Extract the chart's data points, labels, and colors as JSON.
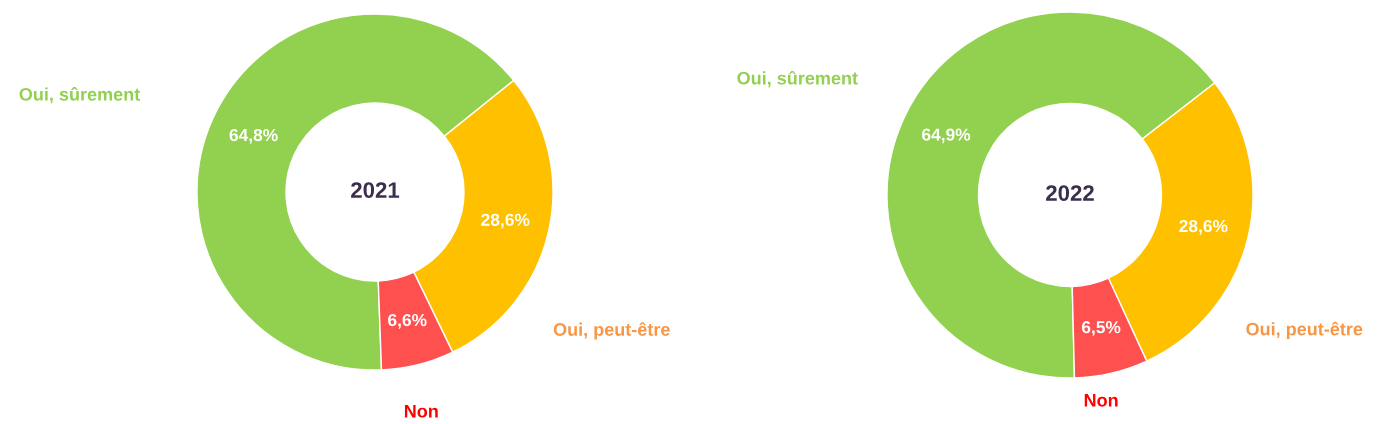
{
  "chart_data": [
    {
      "type": "donut",
      "title": "2021",
      "categories": [
        "Oui, sûrement",
        "Oui, peut-être",
        "Non"
      ],
      "values": [
        64.8,
        28.6,
        6.6
      ],
      "colors": [
        "#92d050",
        "#ffc000",
        "#ff5050"
      ],
      "value_labels": [
        "64,8%",
        "28,6%",
        "6,6%"
      ],
      "legend": false
    },
    {
      "type": "donut",
      "title": "2022",
      "categories": [
        "Oui, sûrement",
        "Oui, peut-être",
        "Non"
      ],
      "values": [
        64.9,
        28.6,
        6.5
      ],
      "colors": [
        "#92d050",
        "#ffc000",
        "#ff5050"
      ],
      "value_labels": [
        "64,9%",
        "28,6%",
        "6,5%"
      ],
      "legend": false
    }
  ]
}
